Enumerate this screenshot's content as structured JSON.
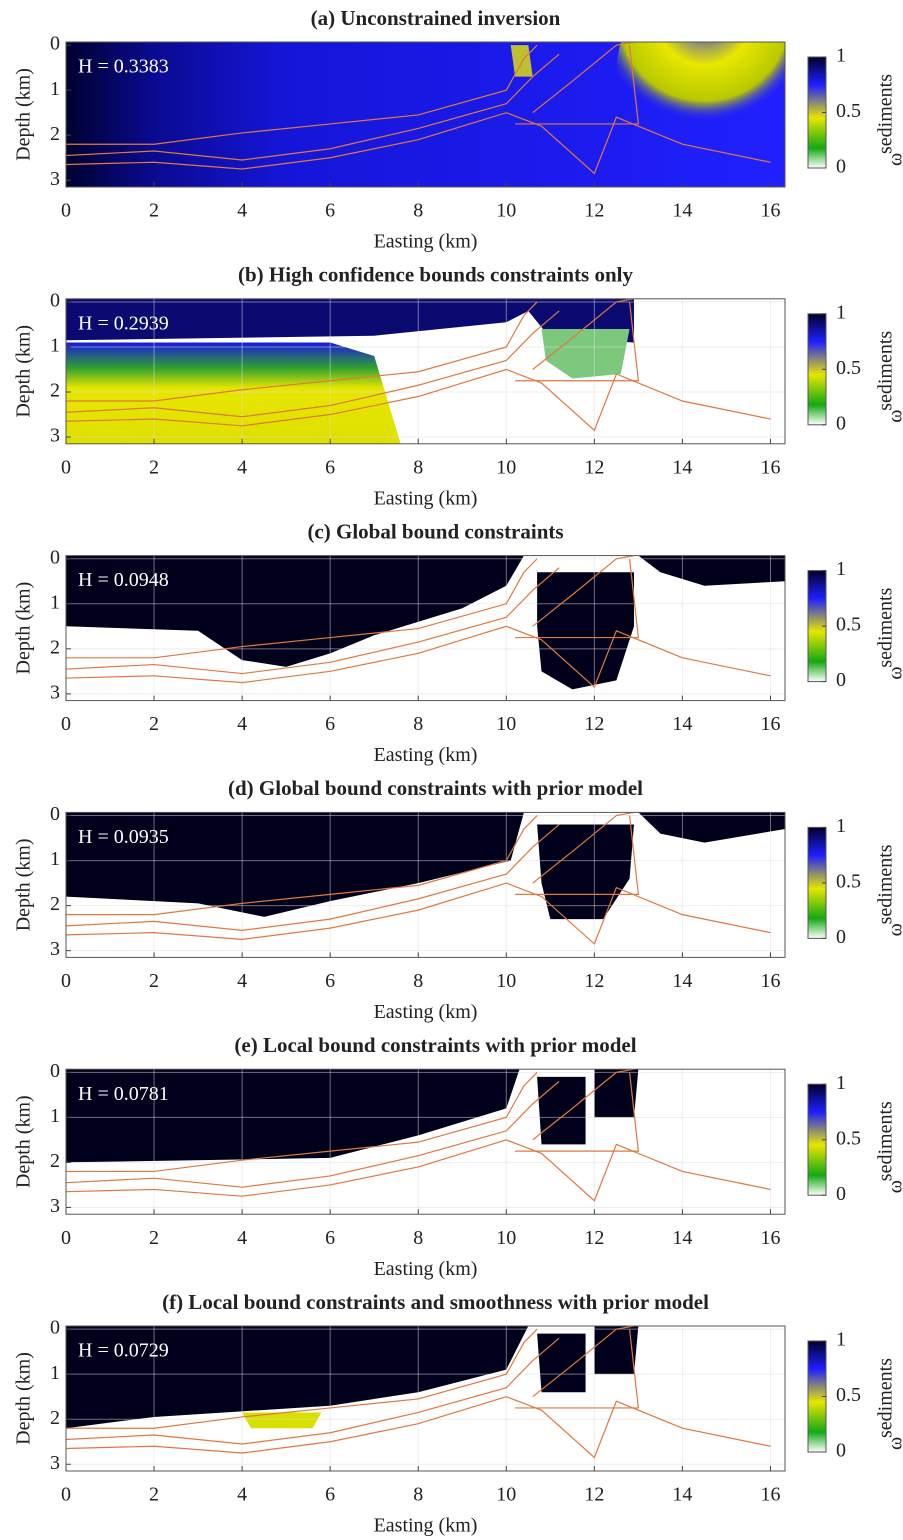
{
  "chart_data": [
    {
      "type": "heatmap",
      "title": "(a) Unconstrained inversion",
      "annotation": "H = 0.3383",
      "x_label": "Easting (km)",
      "y_label": "Depth (km)",
      "xlim": [
        0,
        16.33
      ],
      "ylim": [
        -0.07,
        3.15
      ],
      "xticks": [
        0,
        2,
        4,
        6,
        8,
        10,
        12,
        14,
        16
      ],
      "yticks": [
        0,
        1,
        2,
        3
      ],
      "colorbar": {
        "symbol": "ω",
        "superscript": "sediments",
        "lim": [
          0,
          1
        ],
        "ticks": [
          0,
          0.5,
          1
        ]
      }
    },
    {
      "type": "heatmap",
      "title": "(b) High confidence bounds constraints only",
      "annotation": "H = 0.2939",
      "x_label": "Easting (km)",
      "y_label": "Depth (km)",
      "xlim": [
        0,
        16.33
      ],
      "ylim": [
        -0.07,
        3.15
      ],
      "xticks": [
        0,
        2,
        4,
        6,
        8,
        10,
        12,
        14,
        16
      ],
      "yticks": [
        0,
        1,
        2,
        3
      ],
      "colorbar": {
        "symbol": "ω",
        "superscript": "sediments",
        "lim": [
          0,
          1
        ],
        "ticks": [
          0,
          0.5,
          1
        ]
      }
    },
    {
      "type": "heatmap",
      "title": "(c) Global bound constraints",
      "annotation": "H = 0.0948",
      "x_label": "Easting (km)",
      "y_label": "Depth (km)",
      "xlim": [
        0,
        16.33
      ],
      "ylim": [
        -0.07,
        3.15
      ],
      "xticks": [
        0,
        2,
        4,
        6,
        8,
        10,
        12,
        14,
        16
      ],
      "yticks": [
        0,
        1,
        2,
        3
      ],
      "colorbar": {
        "symbol": "ω",
        "superscript": "sediments",
        "lim": [
          0,
          1
        ],
        "ticks": [
          0,
          0.5,
          1
        ]
      }
    },
    {
      "type": "heatmap",
      "title": "(d) Global bound constraints with prior model",
      "annotation": "H = 0.0935",
      "x_label": "Easting (km)",
      "y_label": "Depth (km)",
      "xlim": [
        0,
        16.33
      ],
      "ylim": [
        -0.07,
        3.15
      ],
      "xticks": [
        0,
        2,
        4,
        6,
        8,
        10,
        12,
        14,
        16
      ],
      "yticks": [
        0,
        1,
        2,
        3
      ],
      "colorbar": {
        "symbol": "ω",
        "superscript": "sediments",
        "lim": [
          0,
          1
        ],
        "ticks": [
          0,
          0.5,
          1
        ]
      }
    },
    {
      "type": "heatmap",
      "title": "(e) Local bound constraints with prior model",
      "annotation": "H = 0.0781",
      "x_label": "Easting (km)",
      "y_label": "Depth (km)",
      "xlim": [
        0,
        16.33
      ],
      "ylim": [
        -0.07,
        3.15
      ],
      "xticks": [
        0,
        2,
        4,
        6,
        8,
        10,
        12,
        14,
        16
      ],
      "yticks": [
        0,
        1,
        2,
        3
      ],
      "colorbar": {
        "symbol": "ω",
        "superscript": "sediments",
        "lim": [
          0,
          1
        ],
        "ticks": [
          0,
          0.5,
          1
        ]
      }
    },
    {
      "type": "heatmap",
      "title": "(f) Local bound constraints and smoothness with prior model",
      "annotation": "H = 0.0729",
      "x_label": "Easting (km)",
      "y_label": "Depth (km)",
      "xlim": [
        0,
        16.33
      ],
      "ylim": [
        -0.07,
        3.15
      ],
      "xticks": [
        0,
        2,
        4,
        6,
        8,
        10,
        12,
        14,
        16
      ],
      "yticks": [
        0,
        1,
        2,
        3
      ],
      "colorbar": {
        "symbol": "ω",
        "superscript": "sediments",
        "lim": [
          0,
          1
        ],
        "ticks": [
          0,
          0.5,
          1
        ]
      }
    }
  ]
}
